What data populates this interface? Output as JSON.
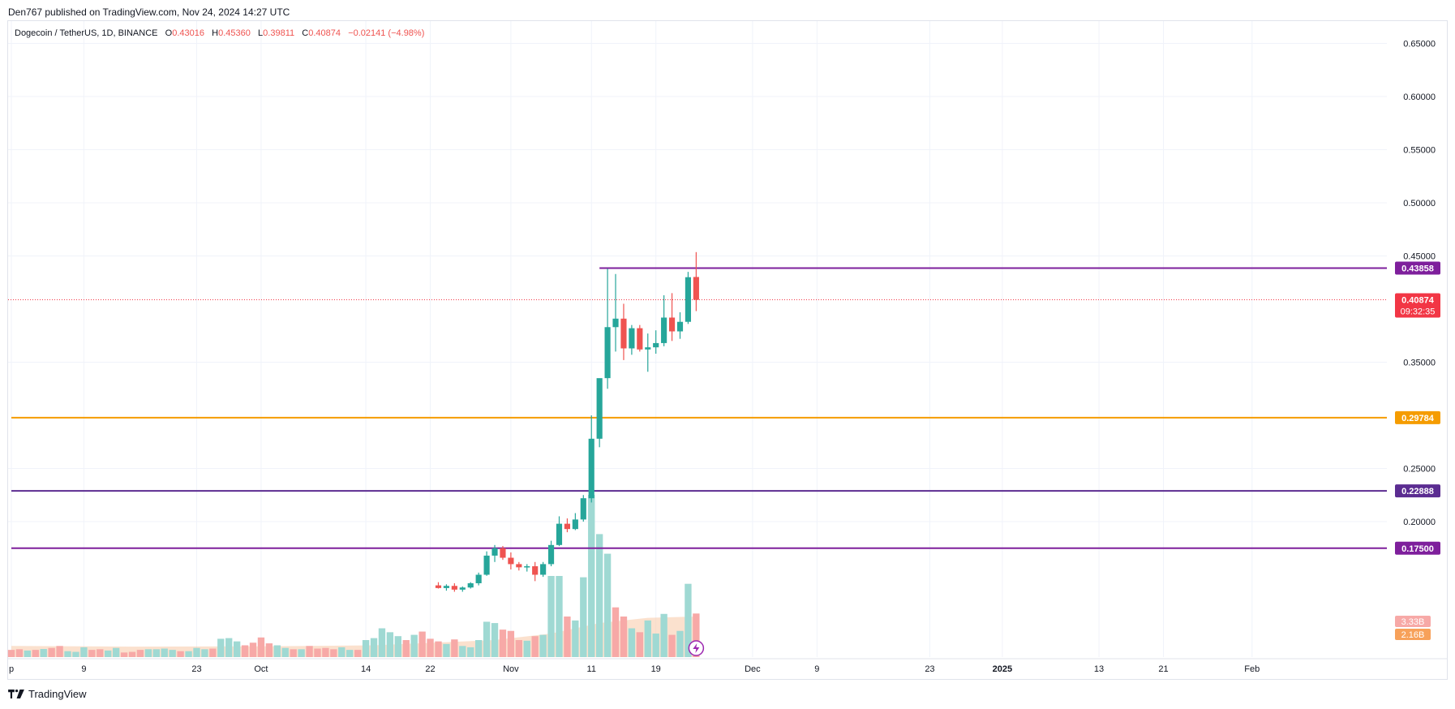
{
  "header": {
    "published": "Den767 published on TradingView.com, Nov 24, 2024 14:27 UTC"
  },
  "legend": {
    "symbol": "Dogecoin / TetherUS, 1D, BINANCE",
    "open_label": "O",
    "open": "0.43016",
    "high_label": "H",
    "high": "0.45360",
    "low_label": "L",
    "low": "0.39811",
    "close_label": "C",
    "close": "0.40874",
    "change": "−0.02141 (−4.98%)"
  },
  "footer": {
    "brand": "TradingView",
    "icon": "tradingview-logo-icon"
  },
  "colors": {
    "up": "#26a69a",
    "down": "#ef5350",
    "vol_up": "#9fd9d3",
    "vol_down": "#f7a9a7",
    "purple": "#7e1f9c",
    "indigo": "#5b2c91",
    "orange": "#f59c00",
    "grid": "#f0f3fa",
    "price_tag": "#f23645"
  },
  "chart_data": {
    "type": "candlestick",
    "symbol": "Dogecoin / TetherUS",
    "timeframe": "1D",
    "exchange": "BINANCE",
    "y_axis": {
      "ticks": [
        "0.65000",
        "0.60000",
        "0.55000",
        "0.50000",
        "0.45000",
        "0.35000",
        "0.25000",
        "0.20000"
      ],
      "tick_values": [
        0.65,
        0.6,
        0.55,
        0.5,
        0.45,
        0.35,
        0.25,
        0.2
      ],
      "range": [
        0.13,
        0.7
      ]
    },
    "x_axis": {
      "ticks": [
        {
          "label": "p",
          "date": "2024-08-31"
        },
        {
          "label": "9",
          "date": "2024-09-09"
        },
        {
          "label": "23",
          "date": "2024-09-23"
        },
        {
          "label": "Oct",
          "date": "2024-10-01"
        },
        {
          "label": "14",
          "date": "2024-10-14"
        },
        {
          "label": "22",
          "date": "2024-10-22"
        },
        {
          "label": "Nov",
          "date": "2024-11-01"
        },
        {
          "label": "11",
          "date": "2024-11-11"
        },
        {
          "label": "19",
          "date": "2024-11-19"
        },
        {
          "label": "Dec",
          "date": "2024-12-01"
        },
        {
          "label": "9",
          "date": "2024-12-09"
        },
        {
          "label": "23",
          "date": "2024-12-23"
        },
        {
          "label": "2025",
          "date": "2025-01-01"
        },
        {
          "label": "13",
          "date": "2025-01-13"
        },
        {
          "label": "21",
          "date": "2025-01-21"
        },
        {
          "label": "Feb",
          "date": "2025-02-01"
        }
      ],
      "range": [
        "2024-08-31",
        "2025-02-13"
      ]
    },
    "horizontal_levels": [
      {
        "value": 0.43858,
        "label": "0.43858",
        "color": "#7e1f9c",
        "start": "2024-11-12"
      },
      {
        "value": 0.29784,
        "label": "0.29784",
        "color": "#f59c00",
        "start": "2024-08-31"
      },
      {
        "value": 0.22888,
        "label": "0.22888",
        "color": "#5b2c91",
        "start": "2024-08-31"
      },
      {
        "value": 0.175,
        "label": "0.17500",
        "color": "#7e1f9c",
        "start": "2024-08-31"
      }
    ],
    "last_price": {
      "value": 0.40874,
      "label": "0.40874",
      "countdown": "09:32:35"
    },
    "volume_labels": [
      {
        "label": "3.33B",
        "color": "#f7a9a7"
      },
      {
        "label": "2.16B",
        "color": "#f7a15a"
      }
    ],
    "candles": [
      {
        "d": "2024-10-23",
        "o": 0.14,
        "h": 0.143,
        "l": 0.137,
        "c": 0.1375
      },
      {
        "d": "2024-10-24",
        "o": 0.1375,
        "h": 0.141,
        "l": 0.135,
        "c": 0.1395
      },
      {
        "d": "2024-10-25",
        "o": 0.1395,
        "h": 0.142,
        "l": 0.134,
        "c": 0.136
      },
      {
        "d": "2024-10-26",
        "o": 0.136,
        "h": 0.139,
        "l": 0.134,
        "c": 0.138
      },
      {
        "d": "2024-10-27",
        "o": 0.138,
        "h": 0.143,
        "l": 0.137,
        "c": 0.142
      },
      {
        "d": "2024-10-28",
        "o": 0.142,
        "h": 0.152,
        "l": 0.14,
        "c": 0.15
      },
      {
        "d": "2024-10-29",
        "o": 0.15,
        "h": 0.172,
        "l": 0.149,
        "c": 0.168
      },
      {
        "d": "2024-10-30",
        "o": 0.168,
        "h": 0.178,
        "l": 0.162,
        "c": 0.175
      },
      {
        "d": "2024-10-31",
        "o": 0.175,
        "h": 0.177,
        "l": 0.164,
        "c": 0.166
      },
      {
        "d": "2024-11-01",
        "o": 0.166,
        "h": 0.171,
        "l": 0.155,
        "c": 0.16
      },
      {
        "d": "2024-11-02",
        "o": 0.16,
        "h": 0.162,
        "l": 0.154,
        "c": 0.157
      },
      {
        "d": "2024-11-03",
        "o": 0.157,
        "h": 0.16,
        "l": 0.153,
        "c": 0.158
      },
      {
        "d": "2024-11-04",
        "o": 0.158,
        "h": 0.162,
        "l": 0.144,
        "c": 0.15
      },
      {
        "d": "2024-11-05",
        "o": 0.15,
        "h": 0.162,
        "l": 0.148,
        "c": 0.16
      },
      {
        "d": "2024-11-06",
        "o": 0.16,
        "h": 0.182,
        "l": 0.158,
        "c": 0.178
      },
      {
        "d": "2024-11-07",
        "o": 0.178,
        "h": 0.205,
        "l": 0.177,
        "c": 0.198
      },
      {
        "d": "2024-11-08",
        "o": 0.198,
        "h": 0.203,
        "l": 0.19,
        "c": 0.193
      },
      {
        "d": "2024-11-09",
        "o": 0.193,
        "h": 0.208,
        "l": 0.192,
        "c": 0.202
      },
      {
        "d": "2024-11-10",
        "o": 0.202,
        "h": 0.225,
        "l": 0.2,
        "c": 0.222
      },
      {
        "d": "2024-11-11",
        "o": 0.222,
        "h": 0.3,
        "l": 0.218,
        "c": 0.278
      },
      {
        "d": "2024-11-12",
        "o": 0.278,
        "h": 0.33,
        "l": 0.27,
        "c": 0.335
      },
      {
        "d": "2024-11-13",
        "o": 0.335,
        "h": 0.438,
        "l": 0.325,
        "c": 0.383
      },
      {
        "d": "2024-11-14",
        "o": 0.383,
        "h": 0.433,
        "l": 0.36,
        "c": 0.391
      },
      {
        "d": "2024-11-15",
        "o": 0.391,
        "h": 0.405,
        "l": 0.352,
        "c": 0.363
      },
      {
        "d": "2024-11-16",
        "o": 0.363,
        "h": 0.385,
        "l": 0.357,
        "c": 0.382
      },
      {
        "d": "2024-11-17",
        "o": 0.382,
        "h": 0.385,
        "l": 0.36,
        "c": 0.362
      },
      {
        "d": "2024-11-18",
        "o": 0.362,
        "h": 0.377,
        "l": 0.341,
        "c": 0.364
      },
      {
        "d": "2024-11-19",
        "o": 0.364,
        "h": 0.38,
        "l": 0.358,
        "c": 0.368
      },
      {
        "d": "2024-11-20",
        "o": 0.368,
        "h": 0.413,
        "l": 0.365,
        "c": 0.392
      },
      {
        "d": "2024-11-21",
        "o": 0.392,
        "h": 0.415,
        "l": 0.37,
        "c": 0.379
      },
      {
        "d": "2024-11-22",
        "o": 0.379,
        "h": 0.397,
        "l": 0.372,
        "c": 0.388
      },
      {
        "d": "2024-11-23",
        "o": 0.388,
        "h": 0.435,
        "l": 0.386,
        "c": 0.43
      },
      {
        "d": "2024-11-24",
        "o": 0.4302,
        "h": 0.4536,
        "l": 0.3981,
        "c": 0.4087
      }
    ],
    "earlier_candles_note": "",
    "volume": [
      {
        "d": "2024-08-31",
        "v": 0.55,
        "up": false
      },
      {
        "d": "2024-09-01",
        "v": 0.6,
        "up": false
      },
      {
        "d": "2024-09-02",
        "v": 0.5,
        "up": true
      },
      {
        "d": "2024-09-03",
        "v": 0.55,
        "up": false
      },
      {
        "d": "2024-09-04",
        "v": 0.62,
        "up": true
      },
      {
        "d": "2024-09-05",
        "v": 0.7,
        "up": false
      },
      {
        "d": "2024-09-06",
        "v": 0.85,
        "up": false
      },
      {
        "d": "2024-09-07",
        "v": 0.45,
        "up": true
      },
      {
        "d": "2024-09-08",
        "v": 0.4,
        "up": true
      },
      {
        "d": "2024-09-09",
        "v": 0.75,
        "up": true
      },
      {
        "d": "2024-09-10",
        "v": 0.55,
        "up": false
      },
      {
        "d": "2024-09-11",
        "v": 0.6,
        "up": false
      },
      {
        "d": "2024-09-12",
        "v": 0.5,
        "up": true
      },
      {
        "d": "2024-09-13",
        "v": 0.7,
        "up": true
      },
      {
        "d": "2024-09-14",
        "v": 0.35,
        "up": false
      },
      {
        "d": "2024-09-15",
        "v": 0.4,
        "up": false
      },
      {
        "d": "2024-09-16",
        "v": 0.55,
        "up": false
      },
      {
        "d": "2024-09-17",
        "v": 0.6,
        "up": true
      },
      {
        "d": "2024-09-18",
        "v": 0.6,
        "up": true
      },
      {
        "d": "2024-09-19",
        "v": 0.65,
        "up": true
      },
      {
        "d": "2024-09-20",
        "v": 0.55,
        "up": true
      },
      {
        "d": "2024-09-21",
        "v": 0.45,
        "up": false
      },
      {
        "d": "2024-09-22",
        "v": 0.45,
        "up": true
      },
      {
        "d": "2024-09-23",
        "v": 0.7,
        "up": true
      },
      {
        "d": "2024-09-24",
        "v": 0.6,
        "up": true
      },
      {
        "d": "2024-09-25",
        "v": 0.65,
        "up": false
      },
      {
        "d": "2024-09-26",
        "v": 1.4,
        "up": true
      },
      {
        "d": "2024-09-27",
        "v": 1.45,
        "up": true
      },
      {
        "d": "2024-09-28",
        "v": 1.2,
        "up": true
      },
      {
        "d": "2024-09-29",
        "v": 0.9,
        "up": false
      },
      {
        "d": "2024-09-30",
        "v": 1.1,
        "up": false
      },
      {
        "d": "2024-10-01",
        "v": 1.5,
        "up": false
      },
      {
        "d": "2024-10-02",
        "v": 1.05,
        "up": false
      },
      {
        "d": "2024-10-03",
        "v": 0.9,
        "up": true
      },
      {
        "d": "2024-10-04",
        "v": 0.7,
        "up": true
      },
      {
        "d": "2024-10-05",
        "v": 0.6,
        "up": false
      },
      {
        "d": "2024-10-06",
        "v": 0.6,
        "up": true
      },
      {
        "d": "2024-10-07",
        "v": 0.85,
        "up": false
      },
      {
        "d": "2024-10-08",
        "v": 0.65,
        "up": false
      },
      {
        "d": "2024-10-09",
        "v": 0.7,
        "up": false
      },
      {
        "d": "2024-10-10",
        "v": 0.6,
        "up": false
      },
      {
        "d": "2024-10-11",
        "v": 0.75,
        "up": true
      },
      {
        "d": "2024-10-12",
        "v": 0.55,
        "up": true
      },
      {
        "d": "2024-10-13",
        "v": 0.55,
        "up": false
      },
      {
        "d": "2024-10-14",
        "v": 1.3,
        "up": true
      },
      {
        "d": "2024-10-15",
        "v": 1.45,
        "up": true
      },
      {
        "d": "2024-10-16",
        "v": 2.2,
        "up": true
      },
      {
        "d": "2024-10-17",
        "v": 1.9,
        "up": true
      },
      {
        "d": "2024-10-18",
        "v": 1.6,
        "up": true
      },
      {
        "d": "2024-10-19",
        "v": 1.3,
        "up": false
      },
      {
        "d": "2024-10-20",
        "v": 1.7,
        "up": true
      },
      {
        "d": "2024-10-21",
        "v": 1.95,
        "up": false
      },
      {
        "d": "2024-10-22",
        "v": 1.4,
        "up": false
      },
      {
        "d": "2024-10-23",
        "v": 1.2,
        "up": false
      },
      {
        "d": "2024-10-24",
        "v": 1.0,
        "up": true
      },
      {
        "d": "2024-10-25",
        "v": 1.35,
        "up": false
      },
      {
        "d": "2024-10-26",
        "v": 0.85,
        "up": true
      },
      {
        "d": "2024-10-27",
        "v": 0.75,
        "up": true
      },
      {
        "d": "2024-10-28",
        "v": 1.3,
        "up": true
      },
      {
        "d": "2024-10-29",
        "v": 2.7,
        "up": true
      },
      {
        "d": "2024-10-30",
        "v": 2.6,
        "up": true
      },
      {
        "d": "2024-10-31",
        "v": 2.1,
        "up": false
      },
      {
        "d": "2024-11-01",
        "v": 2.0,
        "up": false
      },
      {
        "d": "2024-11-02",
        "v": 1.3,
        "up": false
      },
      {
        "d": "2024-11-03",
        "v": 1.25,
        "up": true
      },
      {
        "d": "2024-11-04",
        "v": 1.6,
        "up": false
      },
      {
        "d": "2024-11-05",
        "v": 1.7,
        "up": true
      },
      {
        "d": "2024-11-06",
        "v": 6.2,
        "up": true
      },
      {
        "d": "2024-11-07",
        "v": 6.2,
        "up": true
      },
      {
        "d": "2024-11-08",
        "v": 3.1,
        "up": false
      },
      {
        "d": "2024-11-09",
        "v": 2.8,
        "up": true
      },
      {
        "d": "2024-11-10",
        "v": 6.1,
        "up": true
      },
      {
        "d": "2024-11-11",
        "v": 12.4,
        "up": true
      },
      {
        "d": "2024-11-12",
        "v": 9.4,
        "up": true
      },
      {
        "d": "2024-11-13",
        "v": 7.9,
        "up": true
      },
      {
        "d": "2024-11-14",
        "v": 3.8,
        "up": false
      },
      {
        "d": "2024-11-15",
        "v": 3.1,
        "up": false
      },
      {
        "d": "2024-11-16",
        "v": 2.2,
        "up": true
      },
      {
        "d": "2024-11-17",
        "v": 1.9,
        "up": false
      },
      {
        "d": "2024-11-18",
        "v": 2.8,
        "up": true
      },
      {
        "d": "2024-11-19",
        "v": 1.8,
        "up": true
      },
      {
        "d": "2024-11-20",
        "v": 3.3,
        "up": true
      },
      {
        "d": "2024-11-21",
        "v": 1.7,
        "up": false
      },
      {
        "d": "2024-11-22",
        "v": 2.0,
        "up": true
      },
      {
        "d": "2024-11-23",
        "v": 5.6,
        "up": true
      },
      {
        "d": "2024-11-24",
        "v": 3.33,
        "up": false
      }
    ],
    "volume_ma": [
      {
        "d": "2024-08-31",
        "v": 0.85
      },
      {
        "d": "2024-09-15",
        "v": 0.8
      },
      {
        "d": "2024-10-01",
        "v": 0.82
      },
      {
        "d": "2024-10-15",
        "v": 0.9
      },
      {
        "d": "2024-10-30",
        "v": 1.3
      },
      {
        "d": "2024-11-06",
        "v": 1.8
      },
      {
        "d": "2024-11-12",
        "v": 2.6
      },
      {
        "d": "2024-11-18",
        "v": 3.0
      },
      {
        "d": "2024-11-24",
        "v": 3.1
      }
    ]
  }
}
